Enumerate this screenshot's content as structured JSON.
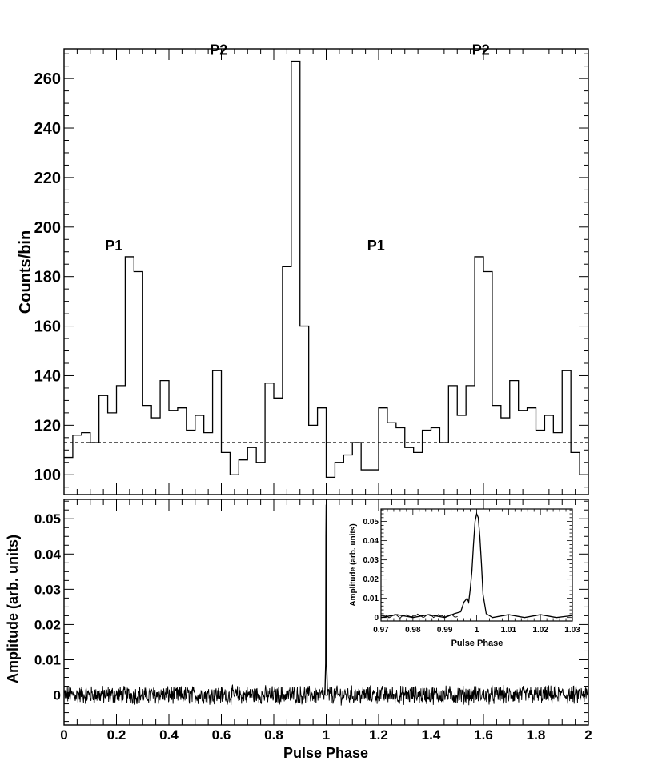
{
  "chart_data": [
    {
      "type": "line",
      "title": "",
      "xlabel": "",
      "ylabel": "Counts/bin",
      "xlim": [
        0,
        2
      ],
      "ylim": [
        92,
        272
      ],
      "yticks": [
        100,
        120,
        140,
        160,
        180,
        200,
        220,
        240,
        260
      ],
      "ytick_labels": [
        "100",
        "120",
        "140",
        "160",
        "180",
        "200",
        "220",
        "240",
        "260"
      ],
      "grid": false,
      "style": "step histogram, 30 bins per phase cycle, shown over two cycles",
      "series": [
        {
          "bin_width": 0.03333,
          "x": [
            0.0,
            0.0333,
            0.0667,
            0.1,
            0.1333,
            0.1667,
            0.2,
            0.2333,
            0.2667,
            0.3,
            0.3333,
            0.3667,
            0.4,
            0.4333,
            0.4667,
            0.5,
            0.5333,
            0.5667,
            0.6,
            0.6333,
            0.6667,
            0.7,
            0.7333,
            0.7667,
            0.8,
            0.8333,
            0.8667,
            0.9,
            0.9333,
            0.9667,
            1.0,
            1.0333,
            1.0667,
            1.1,
            1.1333,
            1.1667,
            1.2,
            1.2333,
            1.2667,
            1.3,
            1.3333,
            1.3667,
            1.4,
            1.4333,
            1.4667,
            1.5,
            1.5333,
            1.5667,
            1.6,
            1.6333,
            1.6667,
            1.7,
            1.7333,
            1.7667,
            1.8,
            1.8333,
            1.8667,
            1.9,
            1.9333,
            1.9667
          ],
          "values": [
            107,
            116,
            117,
            113,
            132,
            125,
            136,
            188,
            182,
            128,
            123,
            138,
            126,
            127,
            118,
            124,
            117,
            142,
            109,
            100,
            106,
            111,
            105,
            137,
            131,
            184,
            267,
            160,
            120,
            127,
            99,
            105,
            108,
            113,
            102,
            102,
            127,
            121,
            119,
            111,
            109,
            118,
            119,
            113,
            136,
            124,
            136,
            188,
            182,
            128,
            123,
            138,
            126,
            127,
            118,
            124,
            117,
            142,
            109,
            100
          ]
        }
      ],
      "reference_lines": [
        {
          "y": 113,
          "style": "dashed"
        }
      ],
      "annotations": [
        {
          "text": "P1",
          "x": 0.19,
          "y": 188
        },
        {
          "text": "P2",
          "x": 0.59,
          "y": 267
        },
        {
          "text": "P1",
          "x": 1.19,
          "y": 188
        },
        {
          "text": "P2",
          "x": 1.59,
          "y": 267
        }
      ]
    },
    {
      "type": "line",
      "title": "",
      "xlabel": "Pulse Phase",
      "ylabel": "Amplitude (arb. units)",
      "xlim": [
        0,
        2
      ],
      "ylim": [
        -0.0085,
        0.0555
      ],
      "xticks": [
        0,
        0.2,
        0.4,
        0.6,
        0.8,
        1,
        1.2,
        1.4,
        1.6,
        1.8,
        2
      ],
      "xtick_labels": [
        "0",
        "0.2",
        "0.4",
        "0.6",
        "0.8",
        "1",
        "1.2",
        "1.4",
        "1.6",
        "1.8",
        "2"
      ],
      "yticks": [
        0,
        0.01,
        0.02,
        0.03,
        0.04,
        0.05
      ],
      "ytick_labels": [
        "0",
        "0.01",
        "0.02",
        "0.03",
        "0.04",
        "0.05"
      ],
      "grid": false,
      "style": "noise-like baseline around 0 (amplitude about ±0.002) with a single narrow spike at phase 1",
      "series": [
        {
          "x": [
            0,
            0.995,
            0.998,
            0.999,
            1.0,
            1.001,
            1.002,
            1.005,
            2
          ],
          "values": [
            0,
            0,
            0.009,
            0.045,
            0.054,
            0.047,
            0.008,
            0,
            0
          ]
        }
      ]
    },
    {
      "type": "line",
      "title": "",
      "xlabel": "Pulse Phase",
      "ylabel": "Amplitude (arb. units)",
      "xlim": [
        0.97,
        1.03
      ],
      "ylim": [
        -0.0018,
        0.0565
      ],
      "xticks": [
        0.97,
        0.98,
        0.99,
        1,
        1.01,
        1.02,
        1.03
      ],
      "xtick_labels": [
        "0.97",
        "0.98",
        "0.99",
        "1",
        "1.01",
        "1.02",
        "1.03"
      ],
      "yticks": [
        0,
        0.01,
        0.02,
        0.03,
        0.04,
        0.05
      ],
      "ytick_labels": [
        "0",
        "0.01",
        "0.02",
        "0.03",
        "0.04",
        "0.05"
      ],
      "grid": false,
      "style": "inset zoom of the spike",
      "series": [
        {
          "x": [
            0.97,
            0.975,
            0.98,
            0.985,
            0.99,
            0.993,
            0.995,
            0.996,
            0.997,
            0.9975,
            0.998,
            0.9985,
            0.999,
            0.9995,
            1.0,
            1.0005,
            1.001,
            1.0015,
            1.002,
            1.003,
            1.005,
            1.01,
            1.015,
            1.02,
            1.025,
            1.03
          ],
          "values": [
            0.0,
            0.0015,
            0.0,
            0.0015,
            0.0,
            0.002,
            0.003,
            0.008,
            0.01,
            0.008,
            0.015,
            0.024,
            0.038,
            0.05,
            0.054,
            0.052,
            0.042,
            0.028,
            0.012,
            0.002,
            0.0,
            0.0015,
            0.0,
            0.0015,
            0.0,
            0.001
          ]
        }
      ]
    }
  ]
}
